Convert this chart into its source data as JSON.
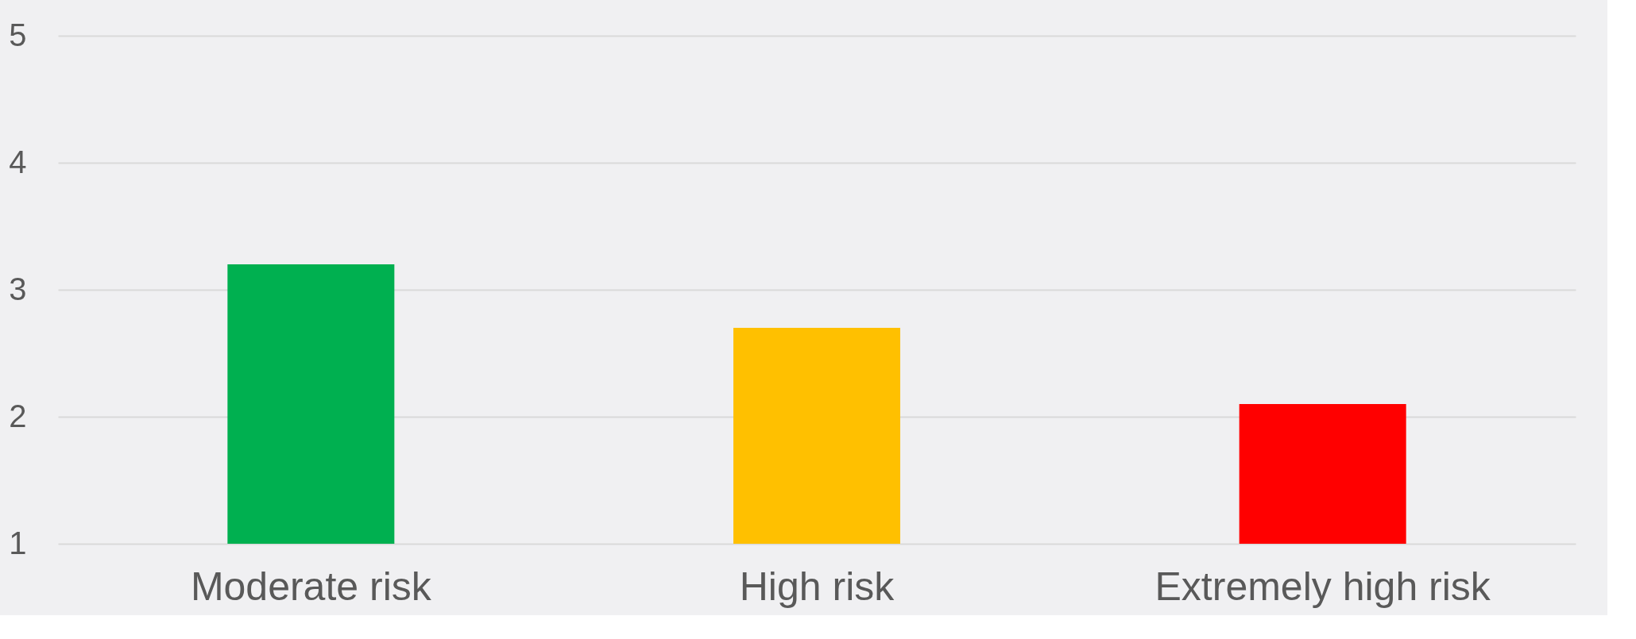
{
  "chart_data": {
    "type": "bar",
    "categories": [
      "Moderate risk",
      "High risk",
      "Extremely high risk"
    ],
    "values": [
      3.2,
      2.7,
      2.1
    ],
    "colors": [
      "#00b050",
      "#ffc000",
      "#ff0000"
    ],
    "ylim": [
      1,
      5
    ],
    "yticks": [
      1,
      2,
      3,
      4,
      5
    ],
    "grid": "y",
    "legend": false
  }
}
